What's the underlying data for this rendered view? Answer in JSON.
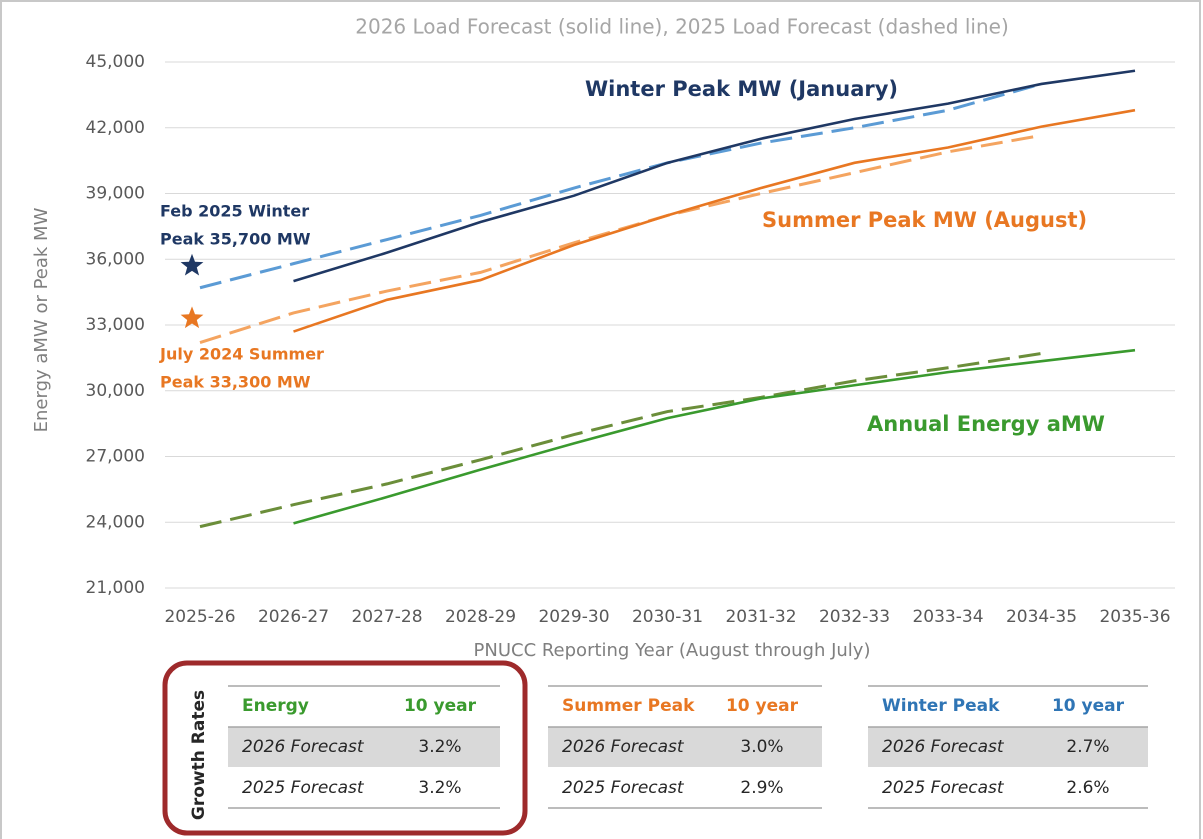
{
  "chart_data": {
    "type": "line",
    "title": "2026 Load Forecast (solid line), 2025 Load Forecast (dashed line)",
    "x_label": "PNUCC Reporting Year (August through July)",
    "y_label": "Energy aMW or Peak MW",
    "categories": [
      "2025-26",
      "2026-27",
      "2027-28",
      "2028-29",
      "2029-30",
      "2030-31",
      "2031-32",
      "2032-33",
      "2033-34",
      "2034-35",
      "2035-36"
    ],
    "ylim": [
      21000,
      45000
    ],
    "yticks": [
      {
        "value": 21000,
        "label": "21,000"
      },
      {
        "value": 24000,
        "label": "24,000"
      },
      {
        "value": 27000,
        "label": "27,000"
      },
      {
        "value": 30000,
        "label": "30,000"
      },
      {
        "value": 33000,
        "label": "33,000"
      },
      {
        "value": 36000,
        "label": "36,000"
      },
      {
        "value": 39000,
        "label": "39,000"
      },
      {
        "value": 42000,
        "label": "42,000"
      },
      {
        "value": 45000,
        "label": "45,000"
      }
    ],
    "grid": true,
    "series": [
      {
        "name": "Winter Peak MW (January)",
        "color": "#1f3864",
        "prior_color": "#5b9bd5",
        "values": [
          null,
          35000,
          36300,
          37700,
          38900,
          40400,
          41500,
          42400,
          43100,
          44000,
          44600
        ],
        "prior_values": [
          34700,
          35800,
          36900,
          38000,
          39250,
          40400,
          41300,
          42000,
          42800,
          44000,
          null
        ]
      },
      {
        "name": "Summer Peak MW (August)",
        "color": "#e87722",
        "prior_color": "#f4a460",
        "values": [
          null,
          32700,
          34150,
          35050,
          36650,
          38000,
          39250,
          40400,
          41100,
          42050,
          42800
        ],
        "prior_values": [
          32200,
          33550,
          34550,
          35400,
          36750,
          38000,
          39000,
          39950,
          40900,
          41650,
          null
        ]
      },
      {
        "name": "Annual Energy aMW",
        "color": "#3a9a2e",
        "prior_color": "#6b8e3a",
        "values": [
          null,
          23950,
          25150,
          26400,
          27600,
          28750,
          29650,
          30250,
          30850,
          31350,
          31850
        ],
        "prior_values": [
          23800,
          24800,
          25750,
          26850,
          28000,
          29050,
          29700,
          30450,
          31050,
          31700,
          null
        ]
      }
    ],
    "markers": [
      {
        "label_lines": [
          "Feb 2025 Winter",
          "Peak 35,700 MW"
        ],
        "value": 35700,
        "color": "#1f3864"
      },
      {
        "label_lines": [
          "July 2024 Summer",
          "Peak 33,300 MW"
        ],
        "value": 33300,
        "color": "#e87722"
      }
    ]
  },
  "growth_label": "Growth Rates",
  "tables": [
    {
      "color": "#3a9a2e",
      "header": [
        "Energy",
        "10 year"
      ],
      "rows": [
        [
          "2026 Forecast",
          "3.2%"
        ],
        [
          "2025 Forecast",
          "3.2%"
        ]
      ]
    },
    {
      "color": "#e87722",
      "header": [
        "Summer Peak",
        "10 year"
      ],
      "rows": [
        [
          "2026 Forecast",
          "3.0%"
        ],
        [
          "2025 Forecast",
          "2.9%"
        ]
      ]
    },
    {
      "color": "#2f75b5",
      "header": [
        "Winter Peak",
        "10 year"
      ],
      "rows": [
        [
          "2026 Forecast",
          "2.7%"
        ],
        [
          "2025 Forecast",
          "2.6%"
        ]
      ]
    }
  ]
}
